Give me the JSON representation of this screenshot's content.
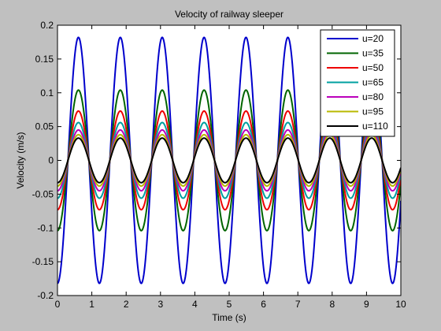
{
  "chart_data": {
    "type": "line",
    "title": "Velocity of railway sleeper",
    "xlabel": "Time (s)",
    "ylabel": "Velocity (m/s)",
    "xlim": [
      0,
      10
    ],
    "ylim": [
      -0.2,
      0.2
    ],
    "xticks": [
      "0",
      "1",
      "2",
      "3",
      "4",
      "5",
      "6",
      "7",
      "8",
      "9",
      "10"
    ],
    "yticks": [
      "-0.2",
      "-0.15",
      "-0.1",
      "-0.05",
      "0",
      "0.05",
      "0.1",
      "0.15",
      "0.2"
    ],
    "grid": false,
    "legend_position": "top-right",
    "waveform": {
      "shape": "negative cosine",
      "period_s": 1.22
    },
    "series": [
      {
        "name": "u=20",
        "amplitude": 0.182,
        "color": "#0000cc"
      },
      {
        "name": "u=35",
        "amplitude": 0.104,
        "color": "#006400"
      },
      {
        "name": "u=50",
        "amplitude": 0.073,
        "color": "#ee0000"
      },
      {
        "name": "u=65",
        "amplitude": 0.056,
        "color": "#00a0a0"
      },
      {
        "name": "u=80",
        "amplitude": 0.045,
        "color": "#bb00bb"
      },
      {
        "name": "u=95",
        "amplitude": 0.038,
        "color": "#b8b800"
      },
      {
        "name": "u=110",
        "amplitude": 0.033,
        "color": "#000000"
      }
    ]
  }
}
